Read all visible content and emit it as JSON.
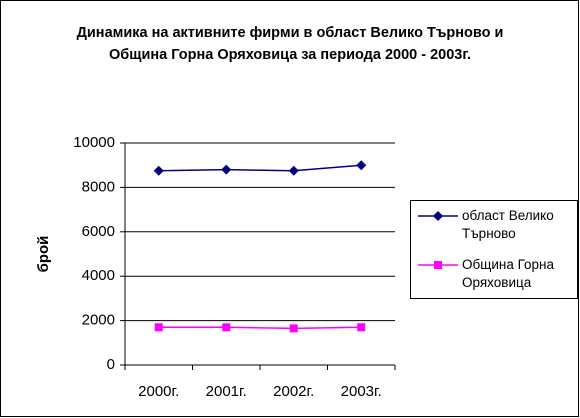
{
  "chart_data": {
    "type": "line",
    "title": "Динамика на активните фирми в област Велико Търново и Община Горна Оряховица за периода 2000 - 2003г.",
    "y_label": "брой",
    "categories": [
      "2000г.",
      "2001г.",
      "2002г.",
      "2003г."
    ],
    "series": [
      {
        "name": "област Велико Търново",
        "color": "#000080",
        "marker": "diamond",
        "values": [
          8750,
          8800,
          8750,
          9000
        ]
      },
      {
        "name": "Община Горна Оряховица",
        "color": "#ff00ff",
        "marker": "square",
        "values": [
          1700,
          1700,
          1650,
          1700
        ]
      }
    ],
    "ylim": [
      0,
      10000
    ],
    "yticks": [
      0,
      2000,
      4000,
      6000,
      8000,
      10000
    ],
    "grid": true,
    "legend": "right"
  }
}
